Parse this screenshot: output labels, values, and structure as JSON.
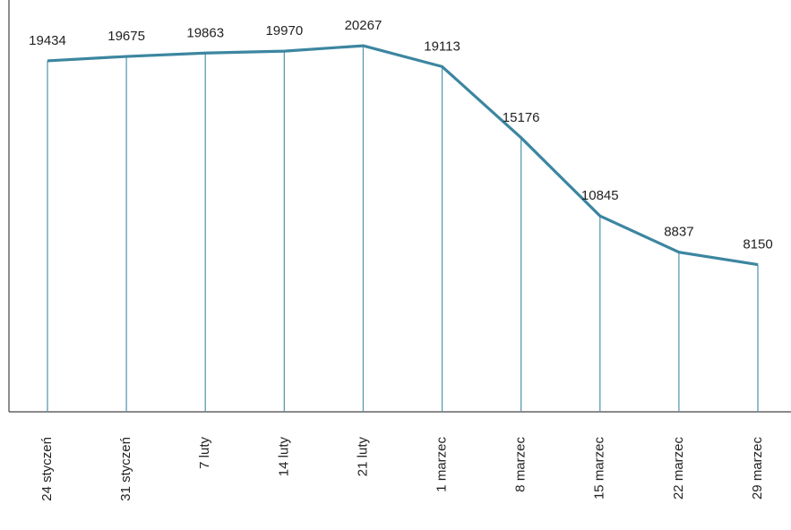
{
  "chart_data": {
    "type": "line",
    "categories": [
      "24 styczeń",
      "31 styczeń",
      "7 luty",
      "14 luty",
      "21 luty",
      "1 marzec",
      "8 marzec",
      "15 marzec",
      "22 marzec",
      "29 marzec"
    ],
    "values": [
      19434,
      19675,
      19863,
      19970,
      20267,
      19113,
      15176,
      10845,
      8837,
      8150
    ],
    "color": "#3c86a0",
    "ylim": [
      0,
      22800
    ]
  }
}
